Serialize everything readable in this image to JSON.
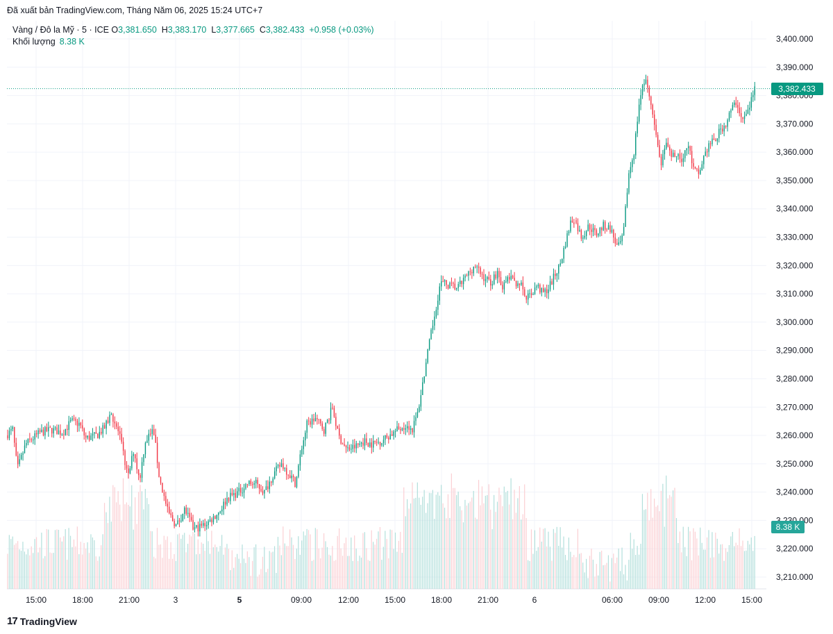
{
  "header": {
    "published": "Đã xuất bản TradingView.com, Tháng Năm 06, 2025 15:24 UTC+7"
  },
  "legend": {
    "symbol": "Vàng / Đô la Mỹ · 5 · ICE",
    "o_label": "O",
    "o_value": "3,381.650",
    "h_label": "H",
    "h_value": "3,383.170",
    "l_label": "L",
    "l_value": "3,377.665",
    "c_label": "C",
    "c_value": "3,382.433",
    "change": "+0.958 (+0.03%)",
    "volume_label": "Khối lượng",
    "volume_value": "8.38 K"
  },
  "brand": {
    "logo": "17",
    "name": "TradingView"
  },
  "colors": {
    "up": "#089981",
    "down": "#f23645",
    "up_vol": "#b2dfdb",
    "down_vol": "#fbcfd3",
    "grid": "#f0f3fa"
  },
  "chart_data": {
    "type": "candlestick",
    "interval": "5",
    "ylim": [
      3205,
      3405
    ],
    "y_ticks": [
      "3,400.000",
      "3,390.000",
      "3,380.000",
      "3,370.000",
      "3,360.000",
      "3,350.000",
      "3,340.000",
      "3,330.000",
      "3,320.000",
      "3,310.000",
      "3,300.000",
      "3,290.000",
      "3,280.000",
      "3,270.000",
      "3,260.000",
      "3,250.000",
      "3,240.000",
      "3,230.000",
      "3,220.000",
      "3,210.000"
    ],
    "x_ticks": [
      "15:00",
      "18:00",
      "21:00",
      "3",
      "5",
      "09:00",
      "12:00",
      "15:00",
      "18:00",
      "21:00",
      "6",
      "06:00",
      "09:00",
      "12:00",
      "15:00"
    ],
    "x_ticks_bold": [
      "5"
    ],
    "last_price": 3382.433,
    "last_price_label": "3,382.433",
    "last_volume_label": "8.38 K",
    "price_path": [
      [
        0,
        3260
      ],
      [
        0.012,
        3262
      ],
      [
        0.02,
        3248
      ],
      [
        0.035,
        3257
      ],
      [
        0.06,
        3261
      ],
      [
        0.08,
        3262
      ],
      [
        0.1,
        3261
      ],
      [
        0.115,
        3265
      ],
      [
        0.13,
        3264
      ],
      [
        0.14,
        3259
      ],
      [
        0.16,
        3260
      ],
      [
        0.175,
        3263
      ],
      [
        0.185,
        3268
      ],
      [
        0.2,
        3260
      ],
      [
        0.215,
        3245
      ],
      [
        0.225,
        3255
      ],
      [
        0.235,
        3244
      ],
      [
        0.245,
        3258
      ],
      [
        0.26,
        3262
      ],
      [
        0.27,
        3245
      ],
      [
        0.285,
        3233
      ],
      [
        0.3,
        3228
      ],
      [
        0.315,
        3234
      ],
      [
        0.33,
        3227
      ],
      [
        0.345,
        3228
      ],
      [
        0.36,
        3230
      ],
      [
        0.375,
        3233
      ],
      [
        0.39,
        3238
      ],
      [
        0.41,
        3240
      ],
      [
        0.425,
        3243
      ],
      [
        0.44,
        3243
      ],
      [
        0.455,
        3240
      ],
      [
        0.47,
        3246
      ],
      [
        0.485,
        3250
      ],
      [
        0.5,
        3246
      ],
      [
        0.51,
        3243
      ],
      [
        0.52,
        3255
      ],
      [
        0.53,
        3264
      ],
      [
        0.545,
        3266
      ],
      [
        0.56,
        3262
      ],
      [
        0.575,
        3270
      ],
      [
        0.585,
        3260
      ],
      [
        0.6,
        3255
      ],
      [
        0.615,
        3256
      ],
      [
        0.63,
        3258
      ],
      [
        0.645,
        3257
      ],
      [
        0.66,
        3258
      ],
      [
        0.675,
        3260
      ],
      [
        0.69,
        3262
      ],
      [
        0.705,
        3264
      ],
      [
        0.715,
        3262
      ],
      [
        0.725,
        3268
      ],
      [
        0.735,
        3280
      ],
      [
        0.745,
        3292
      ],
      [
        0.755,
        3303
      ],
      [
        0.765,
        3314
      ],
      [
        0.78,
        3313
      ],
      [
        0.795,
        3312
      ],
      [
        0.81,
        3316
      ],
      [
        0.825,
        3320
      ],
      [
        0.84,
        3316
      ],
      [
        0.855,
        3314
      ],
      [
        0.865,
        3318
      ],
      [
        0.875,
        3312
      ],
      [
        0.885,
        3316
      ],
      [
        0.895,
        3314
      ],
      [
        0.905,
        3314
      ],
      [
        0.915,
        3308
      ],
      [
        0.925,
        3310
      ],
      [
        0.935,
        3313
      ],
      [
        0.945,
        3310
      ],
      [
        0.955,
        3312
      ],
      [
        0.965,
        3316
      ],
      [
        0.975,
        3320
      ],
      [
        0.985,
        3328
      ],
      [
        0.995,
        3336
      ]
    ],
    "price_path_2": [
      [
        0,
        3336
      ],
      [
        0.04,
        3330
      ],
      [
        0.08,
        3334
      ],
      [
        0.12,
        3331
      ],
      [
        0.16,
        3334
      ],
      [
        0.2,
        3333
      ],
      [
        0.24,
        3326
      ],
      [
        0.27,
        3330
      ],
      [
        0.3,
        3352
      ],
      [
        0.33,
        3360
      ],
      [
        0.36,
        3378
      ],
      [
        0.39,
        3386
      ],
      [
        0.42,
        3378
      ],
      [
        0.45,
        3366
      ],
      [
        0.48,
        3356
      ],
      [
        0.51,
        3362
      ],
      [
        0.54,
        3358
      ],
      [
        0.57,
        3360
      ],
      [
        0.6,
        3357
      ],
      [
        0.63,
        3363
      ],
      [
        0.66,
        3354
      ],
      [
        0.69,
        3352
      ],
      [
        0.72,
        3359
      ],
      [
        0.75,
        3363
      ],
      [
        0.78,
        3364
      ],
      [
        0.81,
        3368
      ],
      [
        0.84,
        3370
      ],
      [
        0.87,
        3375
      ],
      [
        0.9,
        3378
      ],
      [
        0.93,
        3371
      ],
      [
        0.96,
        3374
      ],
      [
        1.0,
        3382.433
      ]
    ]
  }
}
